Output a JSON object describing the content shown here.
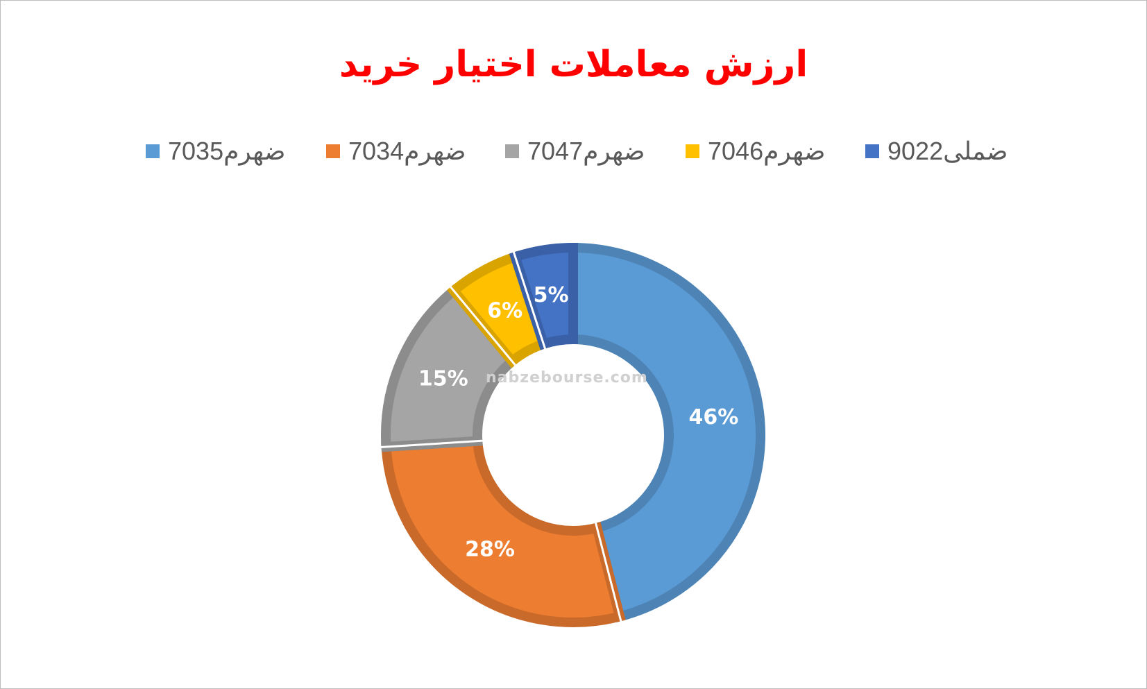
{
  "chart_data": {
    "type": "pie",
    "title": "ارزش معاملات اختیار خرید",
    "labels": [
      "ضهرم7035",
      "ضهرم7034",
      "ضهرم7047",
      "ضهرم7046",
      "ضملی9022"
    ],
    "values": [
      46,
      28,
      15,
      6,
      5
    ],
    "value_labels": [
      "46%",
      "28%",
      "15%",
      "6%",
      "5%"
    ],
    "colors": [
      "#5b9bd5",
      "#ed7d31",
      "#a5a5a5",
      "#ffc000",
      "#4472c4"
    ],
    "legend_position": "top"
  },
  "watermark": "nabzebourse.com"
}
